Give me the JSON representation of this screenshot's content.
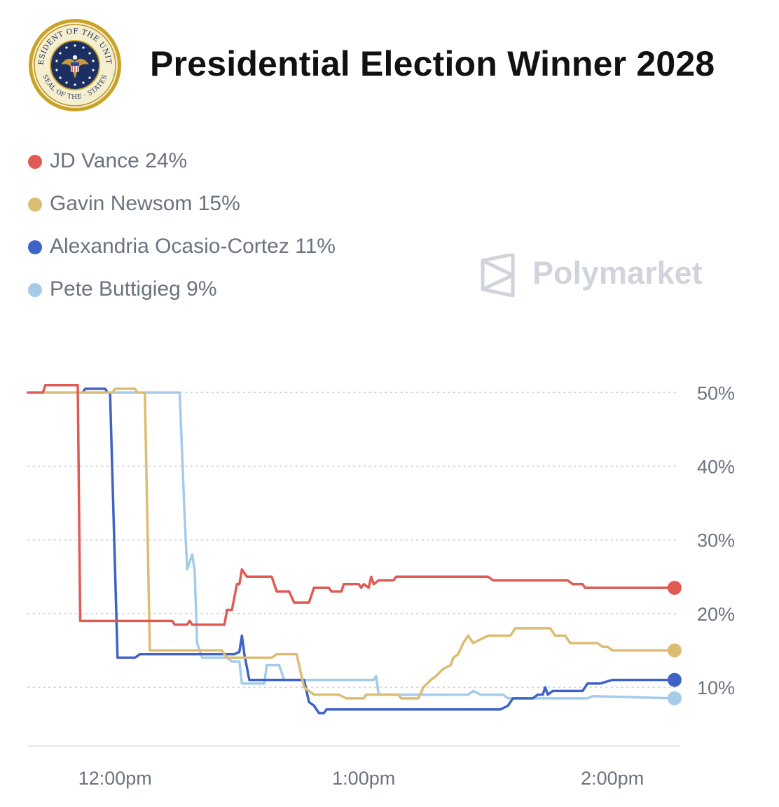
{
  "header": {
    "title": "Presidential Election Winner 2028",
    "seal_text_top": "PRESIDENT OF THE UNITED",
    "seal_text_bottom": "SEAL OF THE · STATES"
  },
  "watermark": {
    "text": "Polymarket"
  },
  "legend": [
    {
      "label": "JD Vance 24%",
      "color": "#e05a54"
    },
    {
      "label": "Gavin Newsom 15%",
      "color": "#dcbc72"
    },
    {
      "label": "Alexandria Ocasio-Cortez 11%",
      "color": "#3f62c6"
    },
    {
      "label": "Pete Buttigieg 9%",
      "color": "#a4cbea"
    }
  ],
  "chart_data": {
    "type": "line",
    "title": "Presidential Election Winner 2028",
    "xlabel": "",
    "ylabel": "",
    "x_unit": "time of day (hours)",
    "x_range": [
      11.65,
      14.27
    ],
    "ylim": [
      2.5,
      50.5
    ],
    "x_ticks": [
      {
        "label": "12:00pm",
        "value": 12.0
      },
      {
        "label": "1:00pm",
        "value": 13.0
      },
      {
        "label": "2:00pm",
        "value": 14.0
      }
    ],
    "y_ticks": [
      {
        "label": "50%",
        "value": 50
      },
      {
        "label": "40%",
        "value": 40
      },
      {
        "label": "30%",
        "value": 30
      },
      {
        "label": "20%",
        "value": 20
      },
      {
        "label": "10%",
        "value": 10
      }
    ],
    "grid": "horizontal-dotted",
    "series": [
      {
        "name": "JD Vance",
        "current": 24,
        "color": "#e05a54",
        "points": [
          [
            11.65,
            50
          ],
          [
            11.71,
            50
          ],
          [
            11.72,
            51
          ],
          [
            11.85,
            51
          ],
          [
            11.86,
            19
          ],
          [
            12.23,
            19
          ],
          [
            12.24,
            18.5
          ],
          [
            12.29,
            18.5
          ],
          [
            12.3,
            19
          ],
          [
            12.31,
            18.5
          ],
          [
            12.44,
            18.5
          ],
          [
            12.45,
            20.5
          ],
          [
            12.47,
            20.5
          ],
          [
            12.49,
            24
          ],
          [
            12.5,
            24
          ],
          [
            12.51,
            26
          ],
          [
            12.53,
            25
          ],
          [
            12.63,
            25
          ],
          [
            12.65,
            23
          ],
          [
            12.7,
            23
          ],
          [
            12.72,
            21.5
          ],
          [
            12.78,
            21.5
          ],
          [
            12.8,
            23.5
          ],
          [
            12.86,
            23.5
          ],
          [
            12.87,
            23
          ],
          [
            12.91,
            23
          ],
          [
            12.92,
            24
          ],
          [
            12.98,
            24
          ],
          [
            12.99,
            23.5
          ],
          [
            13.0,
            24
          ],
          [
            13.02,
            23.5
          ],
          [
            13.03,
            25
          ],
          [
            13.04,
            24
          ],
          [
            13.06,
            24.5
          ],
          [
            13.12,
            24.5
          ],
          [
            13.13,
            25
          ],
          [
            13.5,
            25
          ],
          [
            13.52,
            24.5
          ],
          [
            13.82,
            24.5
          ],
          [
            13.84,
            24
          ],
          [
            13.88,
            24
          ],
          [
            13.89,
            23.5
          ],
          [
            14.25,
            23.5
          ]
        ]
      },
      {
        "name": "Gavin Newsom",
        "current": 15,
        "color": "#dcbc72",
        "points": [
          [
            11.65,
            50
          ],
          [
            11.99,
            50
          ],
          [
            12.0,
            50.5
          ],
          [
            12.08,
            50.5
          ],
          [
            12.09,
            50
          ],
          [
            12.12,
            50
          ],
          [
            12.14,
            15
          ],
          [
            12.43,
            15
          ],
          [
            12.45,
            14
          ],
          [
            12.63,
            14
          ],
          [
            12.65,
            14.5
          ],
          [
            12.73,
            14.5
          ],
          [
            12.76,
            10
          ],
          [
            12.8,
            9
          ],
          [
            12.9,
            9
          ],
          [
            12.93,
            8.5
          ],
          [
            13.0,
            8.5
          ],
          [
            13.01,
            9
          ],
          [
            13.14,
            9
          ],
          [
            13.15,
            8.5
          ],
          [
            13.22,
            8.5
          ],
          [
            13.24,
            10
          ],
          [
            13.27,
            11
          ],
          [
            13.29,
            11.5
          ],
          [
            13.32,
            12.5
          ],
          [
            13.35,
            13
          ],
          [
            13.36,
            14
          ],
          [
            13.38,
            14.5
          ],
          [
            13.4,
            16
          ],
          [
            13.42,
            17
          ],
          [
            13.44,
            16
          ],
          [
            13.47,
            16.5
          ],
          [
            13.5,
            17
          ],
          [
            13.59,
            17
          ],
          [
            13.61,
            18
          ],
          [
            13.75,
            18
          ],
          [
            13.77,
            17
          ],
          [
            13.81,
            17
          ],
          [
            13.83,
            16
          ],
          [
            13.94,
            16
          ],
          [
            13.96,
            15.5
          ],
          [
            13.98,
            15.5
          ],
          [
            14.0,
            15
          ],
          [
            14.25,
            15
          ]
        ]
      },
      {
        "name": "Alexandria Ocasio-Cortez",
        "current": 11,
        "color": "#3f62c6",
        "points": [
          [
            11.65,
            50
          ],
          [
            11.87,
            50
          ],
          [
            11.88,
            50.5
          ],
          [
            11.96,
            50.5
          ],
          [
            11.97,
            50
          ],
          [
            11.98,
            50
          ],
          [
            12.01,
            14
          ],
          [
            12.08,
            14
          ],
          [
            12.1,
            14.5
          ],
          [
            12.48,
            14.5
          ],
          [
            12.5,
            14.8
          ],
          [
            12.51,
            17
          ],
          [
            12.52,
            14.5
          ],
          [
            12.54,
            11
          ],
          [
            12.76,
            11
          ],
          [
            12.78,
            8
          ],
          [
            12.8,
            7.5
          ],
          [
            12.82,
            6.5
          ],
          [
            12.84,
            6.5
          ],
          [
            12.85,
            7
          ],
          [
            13.55,
            7
          ],
          [
            13.58,
            7.5
          ],
          [
            13.6,
            8.5
          ],
          [
            13.68,
            8.5
          ],
          [
            13.7,
            9
          ],
          [
            13.72,
            9
          ],
          [
            13.73,
            10
          ],
          [
            13.74,
            9
          ],
          [
            13.76,
            9.5
          ],
          [
            13.8,
            9.5
          ],
          [
            13.85,
            9.5
          ],
          [
            13.88,
            9.5
          ],
          [
            13.9,
            10.5
          ],
          [
            13.95,
            10.5
          ],
          [
            14.0,
            11
          ],
          [
            14.25,
            11
          ]
        ]
      },
      {
        "name": "Pete Buttigieg",
        "current": 9,
        "color": "#a4cbea",
        "points": [
          [
            11.65,
            50
          ],
          [
            12.26,
            50
          ],
          [
            12.28,
            33
          ],
          [
            12.29,
            26
          ],
          [
            12.3,
            27
          ],
          [
            12.31,
            28
          ],
          [
            12.32,
            26
          ],
          [
            12.33,
            16
          ],
          [
            12.35,
            14
          ],
          [
            12.45,
            14
          ],
          [
            12.47,
            13.5
          ],
          [
            12.5,
            13.5
          ],
          [
            12.51,
            10.5
          ],
          [
            12.6,
            10.5
          ],
          [
            12.61,
            13
          ],
          [
            12.66,
            13
          ],
          [
            12.68,
            11
          ],
          [
            13.04,
            11
          ],
          [
            13.05,
            11.5
          ],
          [
            13.06,
            9
          ],
          [
            13.42,
            9
          ],
          [
            13.44,
            9.5
          ],
          [
            13.47,
            9
          ],
          [
            13.56,
            9
          ],
          [
            13.58,
            8.5
          ],
          [
            13.9,
            8.5
          ],
          [
            13.92,
            8.8
          ],
          [
            14.25,
            8.5
          ]
        ]
      }
    ]
  }
}
